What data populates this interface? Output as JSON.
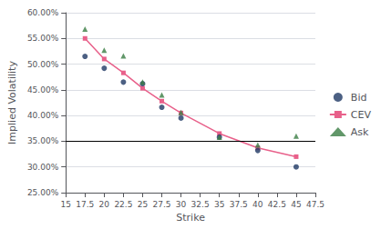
{
  "chart_data": {
    "type": "scatter",
    "x": [
      17.5,
      20,
      22.5,
      25,
      27.5,
      30,
      35,
      40,
      45
    ],
    "series": [
      {
        "name": "Bid",
        "type": "scatter",
        "marker": "circle",
        "color": "#1F3864",
        "values": [
          0.515,
          0.492,
          0.465,
          0.462,
          0.416,
          0.395,
          0.358,
          0.332,
          0.3
        ]
      },
      {
        "name": "CEV",
        "type": "line",
        "marker": "square",
        "color": "#E8608A",
        "values": [
          0.55,
          0.51,
          0.483,
          0.453,
          0.428,
          0.405,
          0.365,
          0.337,
          0.32
        ]
      },
      {
        "name": "Ask",
        "type": "scatter",
        "marker": "triangle",
        "color": "#3A7D44",
        "values": [
          0.568,
          0.527,
          0.516,
          0.465,
          0.44,
          0.406,
          0.358,
          0.343,
          0.36
        ]
      }
    ],
    "hline": {
      "y": 0.35,
      "color": "#000000"
    },
    "xlabel": "Strike",
    "ylabel": "Implied Volatility",
    "xlim": [
      15,
      47.5
    ],
    "ylim": [
      0.25,
      0.6
    ],
    "xticks": [
      15,
      17.5,
      20,
      22.5,
      25,
      27.5,
      30,
      32.5,
      35,
      37.5,
      40,
      42.5,
      45,
      47.5
    ],
    "yticks": [
      {
        "value": 0.25,
        "label": "25.00%"
      },
      {
        "value": 0.3,
        "label": "30.00%"
      },
      {
        "value": 0.35,
        "label": "35.00%"
      },
      {
        "value": 0.4,
        "label": "40.00%"
      },
      {
        "value": 0.45,
        "label": "45.00%"
      },
      {
        "value": 0.5,
        "label": "50.00%"
      },
      {
        "value": 0.55,
        "label": "55.00%"
      },
      {
        "value": 0.6,
        "label": "60.00%"
      }
    ],
    "grid": "y",
    "legend": "right"
  }
}
